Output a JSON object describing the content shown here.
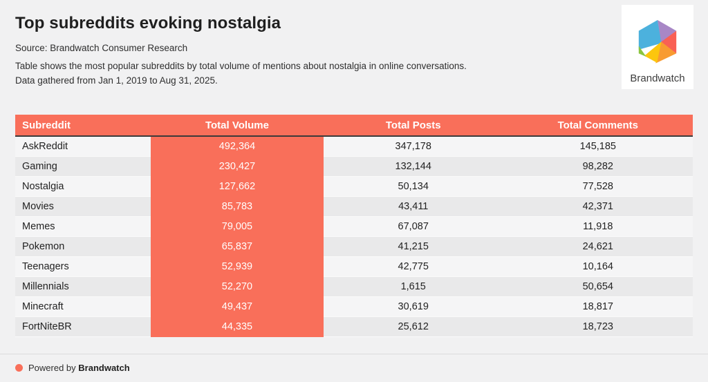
{
  "header": {
    "title": "Top subreddits evoking nostalgia",
    "source": "Source: Brandwatch Consumer Research",
    "description_line1": "Table shows the most popular subreddits by total volume of mentions about nostalgia in online conversations.",
    "description_line2": "Data gathered from Jan 1, 2019 to Aug 31, 2025."
  },
  "logo": {
    "text": "Brandwatch",
    "icon": "brandwatch-hexagon-icon",
    "facet_colors": {
      "blue": "#4cb1dd",
      "purple": "#a887c6",
      "red": "#f96054",
      "orange": "#f89b31",
      "yellow": "#fcc60d",
      "green": "#8bc540"
    }
  },
  "colors": {
    "accent_coral": "#f96f5a",
    "page_background": "#f1f1f2",
    "row_light": "#f5f5f6",
    "row_dark": "#e9e9ea",
    "header_underline": "#3a3a3a"
  },
  "table": {
    "columns": [
      "Subreddit",
      "Total Volume",
      "Total Posts",
      "Total Comments"
    ],
    "rows": [
      {
        "subreddit": "AskReddit",
        "total_volume": "492,364",
        "total_posts": "347,178",
        "total_comments": "145,185"
      },
      {
        "subreddit": "Gaming",
        "total_volume": "230,427",
        "total_posts": "132,144",
        "total_comments": "98,282"
      },
      {
        "subreddit": "Nostalgia",
        "total_volume": "127,662",
        "total_posts": "50,134",
        "total_comments": "77,528"
      },
      {
        "subreddit": "Movies",
        "total_volume": "85,783",
        "total_posts": "43,411",
        "total_comments": "42,371"
      },
      {
        "subreddit": "Memes",
        "total_volume": "79,005",
        "total_posts": "67,087",
        "total_comments": "11,918"
      },
      {
        "subreddit": "Pokemon",
        "total_volume": "65,837",
        "total_posts": "41,215",
        "total_comments": "24,621"
      },
      {
        "subreddit": "Teenagers",
        "total_volume": "52,939",
        "total_posts": "42,775",
        "total_comments": "10,164"
      },
      {
        "subreddit": "Millennials",
        "total_volume": "52,270",
        "total_posts": "1,615",
        "total_comments": "50,654"
      },
      {
        "subreddit": "Minecraft",
        "total_volume": "49,437",
        "total_posts": "30,619",
        "total_comments": "18,817"
      },
      {
        "subreddit": "FortNiteBR",
        "total_volume": "44,335",
        "total_posts": "25,612",
        "total_comments": "18,723"
      }
    ]
  },
  "footer": {
    "powered_by": "Powered by",
    "brand": "Brandwatch"
  },
  "chart_data": {
    "type": "table",
    "title": "Top subreddits evoking nostalgia",
    "source": "Brandwatch Consumer Research",
    "date_range": "Jan 1, 2019 to Aug 31, 2025",
    "columns": [
      "Subreddit",
      "Total Volume",
      "Total Posts",
      "Total Comments"
    ],
    "categories": [
      "AskReddit",
      "Gaming",
      "Nostalgia",
      "Movies",
      "Memes",
      "Pokemon",
      "Teenagers",
      "Millennials",
      "Minecraft",
      "FortNiteBR"
    ],
    "series": [
      {
        "name": "Total Volume",
        "values": [
          492364,
          230427,
          127662,
          85783,
          79005,
          65837,
          52939,
          52270,
          49437,
          44335
        ]
      },
      {
        "name": "Total Posts",
        "values": [
          347178,
          132144,
          50134,
          43411,
          67087,
          41215,
          42775,
          1615,
          30619,
          25612
        ]
      },
      {
        "name": "Total Comments",
        "values": [
          145185,
          98282,
          77528,
          42371,
          11918,
          24621,
          10164,
          50654,
          18817,
          18723
        ]
      }
    ]
  }
}
